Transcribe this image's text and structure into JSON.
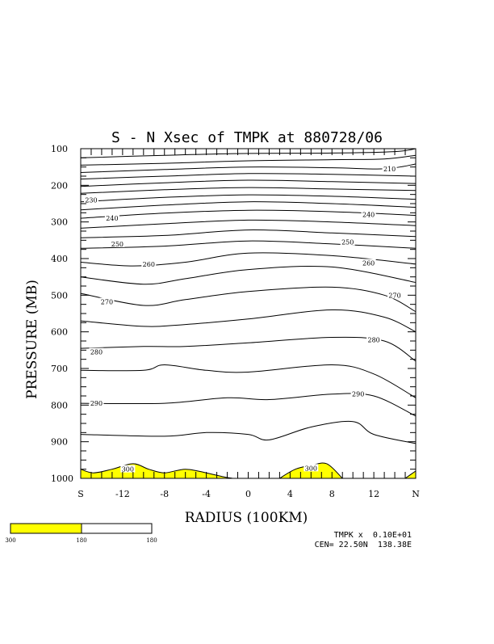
{
  "chart_data": {
    "type": "contour",
    "title": "S - N Xsec of TMPK at 880728/06",
    "xlabel": "RADIUS (100KM)",
    "ylabel": "PRESSURE (MB)",
    "x_ticks": [
      "S",
      "-12",
      "-8",
      "-4",
      "0",
      "4",
      "8",
      "12",
      "N"
    ],
    "x_tick_values": [
      -16,
      -12,
      -8,
      -4,
      0,
      4,
      8,
      12,
      16
    ],
    "y_ticks": [
      "100",
      "200",
      "300",
      "400",
      "500",
      "600",
      "700",
      "800",
      "900",
      "1000"
    ],
    "xlim": [
      -16,
      16
    ],
    "ylim": [
      1000,
      100
    ],
    "contour_interval": 10,
    "contour_labels": [
      {
        "text": "210",
        "x": 13.5,
        "p": 155
      },
      {
        "text": "230",
        "x": -15,
        "p": 240
      },
      {
        "text": "240",
        "x": -13,
        "p": 290
      },
      {
        "text": "240",
        "x": 11.5,
        "p": 280
      },
      {
        "text": "250",
        "x": -12.5,
        "p": 360
      },
      {
        "text": "250",
        "x": 9.5,
        "p": 355
      },
      {
        "text": "260",
        "x": -9.5,
        "p": 415
      },
      {
        "text": "260",
        "x": 11.5,
        "p": 412
      },
      {
        "text": "270",
        "x": -13.5,
        "p": 518
      },
      {
        "text": "270",
        "x": 14,
        "p": 500
      },
      {
        "text": "280",
        "x": -14.5,
        "p": 655
      },
      {
        "text": "280",
        "x": 12,
        "p": 622
      },
      {
        "text": "290",
        "x": -14.5,
        "p": 795
      },
      {
        "text": "290",
        "x": 10.5,
        "p": 770
      },
      {
        "text": "300",
        "x": -11.5,
        "p": 975
      },
      {
        "text": "300",
        "x": 6,
        "p": 972
      }
    ],
    "isolines": [
      {
        "x": [
          -16,
          -8,
          0,
          8,
          14,
          16
        ],
        "p": [
          125,
          118,
          113,
          112,
          108,
          100
        ]
      },
      {
        "x": [
          -16,
          -8,
          0,
          8,
          13,
          16
        ],
        "p": [
          145,
          140,
          133,
          130,
          128,
          118
        ]
      },
      {
        "x": [
          -16,
          -8,
          0,
          8,
          13,
          16
        ],
        "p": [
          165,
          157,
          150,
          152,
          155,
          142
        ]
      },
      {
        "x": [
          -16,
          -8,
          0,
          8,
          16
        ],
        "p": [
          183,
          175,
          168,
          170,
          175
        ]
      },
      {
        "x": [
          -16,
          -8,
          0,
          8,
          16
        ],
        "p": [
          203,
          193,
          186,
          190,
          195
        ]
      },
      {
        "x": [
          -16,
          -8,
          0,
          8,
          16
        ],
        "p": [
          222,
          212,
          206,
          210,
          214
        ]
      },
      {
        "x": [
          -16,
          -8,
          0,
          8,
          16
        ],
        "p": [
          245,
          233,
          226,
          230,
          238
        ]
      },
      {
        "x": [
          -16,
          -8,
          0,
          8,
          16
        ],
        "p": [
          267,
          254,
          245,
          250,
          260
        ]
      },
      {
        "x": [
          -16,
          -8,
          0,
          8,
          16
        ],
        "p": [
          290,
          276,
          268,
          272,
          282
        ]
      },
      {
        "x": [
          -16,
          -8,
          0,
          8,
          16
        ],
        "p": [
          317,
          305,
          295,
          300,
          310
        ]
      },
      {
        "x": [
          -16,
          -8,
          0,
          8,
          16
        ],
        "p": [
          343,
          337,
          322,
          330,
          340
        ]
      },
      {
        "x": [
          -16,
          -8,
          0,
          8,
          16
        ],
        "p": [
          372,
          366,
          352,
          360,
          372
        ]
      },
      {
        "x": [
          -16,
          -11,
          -6,
          0,
          8,
          16
        ],
        "p": [
          410,
          420,
          410,
          385,
          392,
          415
        ]
      },
      {
        "x": [
          -16,
          -10,
          -6,
          0,
          8,
          16
        ],
        "p": [
          450,
          470,
          455,
          430,
          423,
          465
        ]
      },
      {
        "x": [
          -16,
          -10,
          -6,
          0,
          8,
          13,
          16
        ],
        "p": [
          495,
          528,
          512,
          490,
          478,
          500,
          545
        ]
      },
      {
        "x": [
          -16,
          -10,
          -6,
          0,
          8,
          13,
          16
        ],
        "p": [
          570,
          585,
          580,
          565,
          540,
          560,
          600
        ]
      },
      {
        "x": [
          -16,
          -10,
          -6,
          0,
          8,
          13,
          16
        ],
        "p": [
          645,
          640,
          640,
          630,
          615,
          625,
          680
        ]
      },
      {
        "x": [
          -16,
          -10,
          -8,
          -4,
          0,
          8,
          12,
          16
        ],
        "p": [
          705,
          705,
          690,
          705,
          710,
          690,
          715,
          780
        ]
      },
      {
        "x": [
          -16,
          -8,
          -2,
          2,
          8,
          12,
          16
        ],
        "p": [
          795,
          795,
          780,
          785,
          770,
          775,
          830
        ]
      },
      {
        "x": [
          -16,
          -8,
          -4,
          0,
          2,
          6,
          10,
          12,
          16
        ],
        "p": [
          880,
          885,
          875,
          880,
          895,
          860,
          845,
          880,
          905
        ]
      }
    ],
    "shaded_above_300": [
      {
        "x": [
          -16,
          -14.8,
          -13,
          -11,
          -9.5,
          -8,
          -6,
          -4,
          -2.5,
          -1.5
        ],
        "p": [
          975,
          985,
          975,
          960,
          975,
          985,
          975,
          985,
          995,
          1000
        ]
      },
      {
        "x": [
          3,
          4.5,
          6,
          7.5,
          9
        ],
        "p": [
          1000,
          975,
          965,
          960,
          1000
        ]
      },
      {
        "x": [
          15,
          16
        ],
        "p": [
          1000,
          980
        ]
      }
    ],
    "colorbar": {
      "labels": [
        "300",
        "180",
        "180"
      ],
      "colors": [
        "#ffff00",
        "#ffffff"
      ]
    },
    "footer": {
      "line1": "TMPK x  0.10E+01",
      "line2": "CEN= 22.50N  138.38E"
    },
    "grid": false,
    "legend": "bottom-left"
  },
  "colors": {
    "shade": "#ffff00",
    "line": "#000000",
    "background": "#ffffff"
  }
}
